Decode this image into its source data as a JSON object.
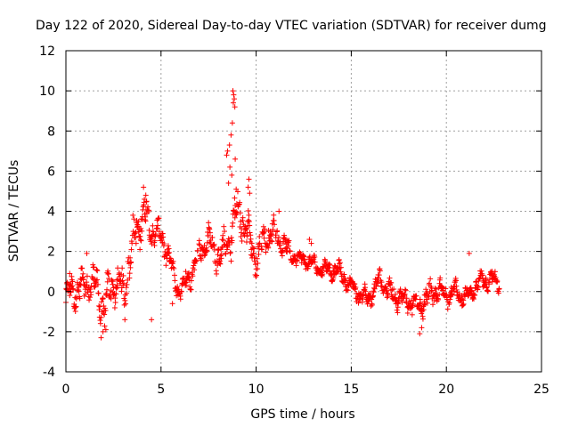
{
  "chart_data": {
    "type": "scatter",
    "title": "Day 122 of 2020, Sidereal Day-to-day VTEC variation (SDTVAR) for receiver dumg",
    "xlabel": "GPS time / hours",
    "ylabel": "SDTVAR / TECUs",
    "xlim": [
      0,
      25
    ],
    "ylim": [
      -4,
      12
    ],
    "xticks": [
      0,
      5,
      10,
      15,
      20,
      25
    ],
    "yticks": [
      -4,
      -2,
      0,
      2,
      4,
      6,
      8,
      10,
      12
    ],
    "xtick_labels": [
      "0",
      "5",
      "10",
      "15",
      "20",
      "25"
    ],
    "ytick_labels": [
      "-4",
      "-2",
      "0",
      "2",
      "4",
      "6",
      "8",
      "10",
      "12"
    ],
    "grid": true,
    "marker": "+",
    "color": "#ff0000",
    "series": [
      {
        "name": "SDTVAR",
        "x_start": 0.0,
        "x_end": 22.8,
        "x_step": 0.0167,
        "trend": [
          [
            0.0,
            -0.4
          ],
          [
            0.3,
            0.0
          ],
          [
            0.8,
            0.2
          ],
          [
            1.2,
            0.5
          ],
          [
            1.6,
            0.3
          ],
          [
            2.0,
            -1.0
          ],
          [
            2.5,
            0.6
          ],
          [
            3.0,
            -0.2
          ],
          [
            3.3,
            1.5
          ],
          [
            3.7,
            3.0
          ],
          [
            4.1,
            4.0
          ],
          [
            4.6,
            3.0
          ],
          [
            5.0,
            2.7
          ],
          [
            5.4,
            1.8
          ],
          [
            5.8,
            0.2
          ],
          [
            6.0,
            0.0
          ],
          [
            6.6,
            0.9
          ],
          [
            7.0,
            2.0
          ],
          [
            7.5,
            2.6
          ],
          [
            8.0,
            1.8
          ],
          [
            8.4,
            2.0
          ],
          [
            8.8,
            3.4
          ],
          [
            9.2,
            4.0
          ],
          [
            9.6,
            2.7
          ],
          [
            10.0,
            1.6
          ],
          [
            10.4,
            2.5
          ],
          [
            10.8,
            3.0
          ],
          [
            11.3,
            2.6
          ],
          [
            11.8,
            1.8
          ],
          [
            12.3,
            1.6
          ],
          [
            12.8,
            1.5
          ],
          [
            13.2,
            1.2
          ],
          [
            13.8,
            1.1
          ],
          [
            14.4,
            1.0
          ],
          [
            15.0,
            0.2
          ],
          [
            15.5,
            -0.2
          ],
          [
            16.0,
            -0.3
          ],
          [
            16.5,
            0.6
          ],
          [
            17.0,
            0.0
          ],
          [
            17.5,
            -0.3
          ],
          [
            18.0,
            -0.4
          ],
          [
            18.5,
            -0.8
          ],
          [
            19.0,
            -0.3
          ],
          [
            19.5,
            0.1
          ],
          [
            20.0,
            -0.2
          ],
          [
            20.5,
            0.0
          ],
          [
            21.0,
            -0.3
          ],
          [
            21.5,
            0.2
          ],
          [
            22.0,
            0.6
          ],
          [
            22.5,
            0.5
          ],
          [
            22.8,
            0.4
          ]
        ],
        "spread": [
          [
            0.0,
            0.8
          ],
          [
            2.0,
            1.3
          ],
          [
            3.0,
            1.2
          ],
          [
            4.0,
            1.2
          ],
          [
            5.0,
            0.8
          ],
          [
            6.0,
            0.5
          ],
          [
            8.0,
            0.9
          ],
          [
            9.0,
            1.4
          ],
          [
            10.0,
            0.9
          ],
          [
            11.0,
            0.9
          ],
          [
            12.0,
            0.4
          ],
          [
            15.0,
            0.5
          ],
          [
            17.0,
            0.6
          ],
          [
            19.0,
            0.7
          ],
          [
            21.0,
            0.5
          ],
          [
            22.8,
            0.6
          ]
        ],
        "outliers": [
          [
            8.78,
            10.0
          ],
          [
            8.82,
            9.8
          ],
          [
            8.85,
            9.6
          ],
          [
            8.8,
            9.4
          ],
          [
            8.88,
            9.2
          ],
          [
            8.75,
            8.4
          ],
          [
            8.68,
            7.8
          ],
          [
            8.6,
            7.3
          ],
          [
            8.5,
            7.0
          ],
          [
            8.45,
            6.8
          ],
          [
            8.9,
            6.6
          ],
          [
            8.62,
            6.2
          ],
          [
            8.72,
            5.8
          ],
          [
            8.55,
            5.4
          ],
          [
            8.95,
            5.1
          ],
          [
            9.62,
            5.6
          ],
          [
            9.58,
            5.2
          ],
          [
            9.66,
            4.9
          ],
          [
            4.08,
            5.2
          ],
          [
            4.2,
            4.8
          ],
          [
            1.85,
            -2.3
          ],
          [
            1.95,
            -2.0
          ],
          [
            2.1,
            -1.9
          ],
          [
            3.1,
            -1.4
          ],
          [
            4.5,
            -1.4
          ],
          [
            18.6,
            -2.1
          ],
          [
            18.7,
            -1.8
          ],
          [
            21.2,
            1.9
          ],
          [
            1.1,
            1.9
          ],
          [
            0.2,
            0.9
          ],
          [
            12.8,
            2.6
          ],
          [
            12.9,
            2.4
          ],
          [
            11.2,
            4.0
          ],
          [
            5.6,
            -0.6
          ],
          [
            6.3,
            1.0
          ]
        ]
      }
    ]
  }
}
